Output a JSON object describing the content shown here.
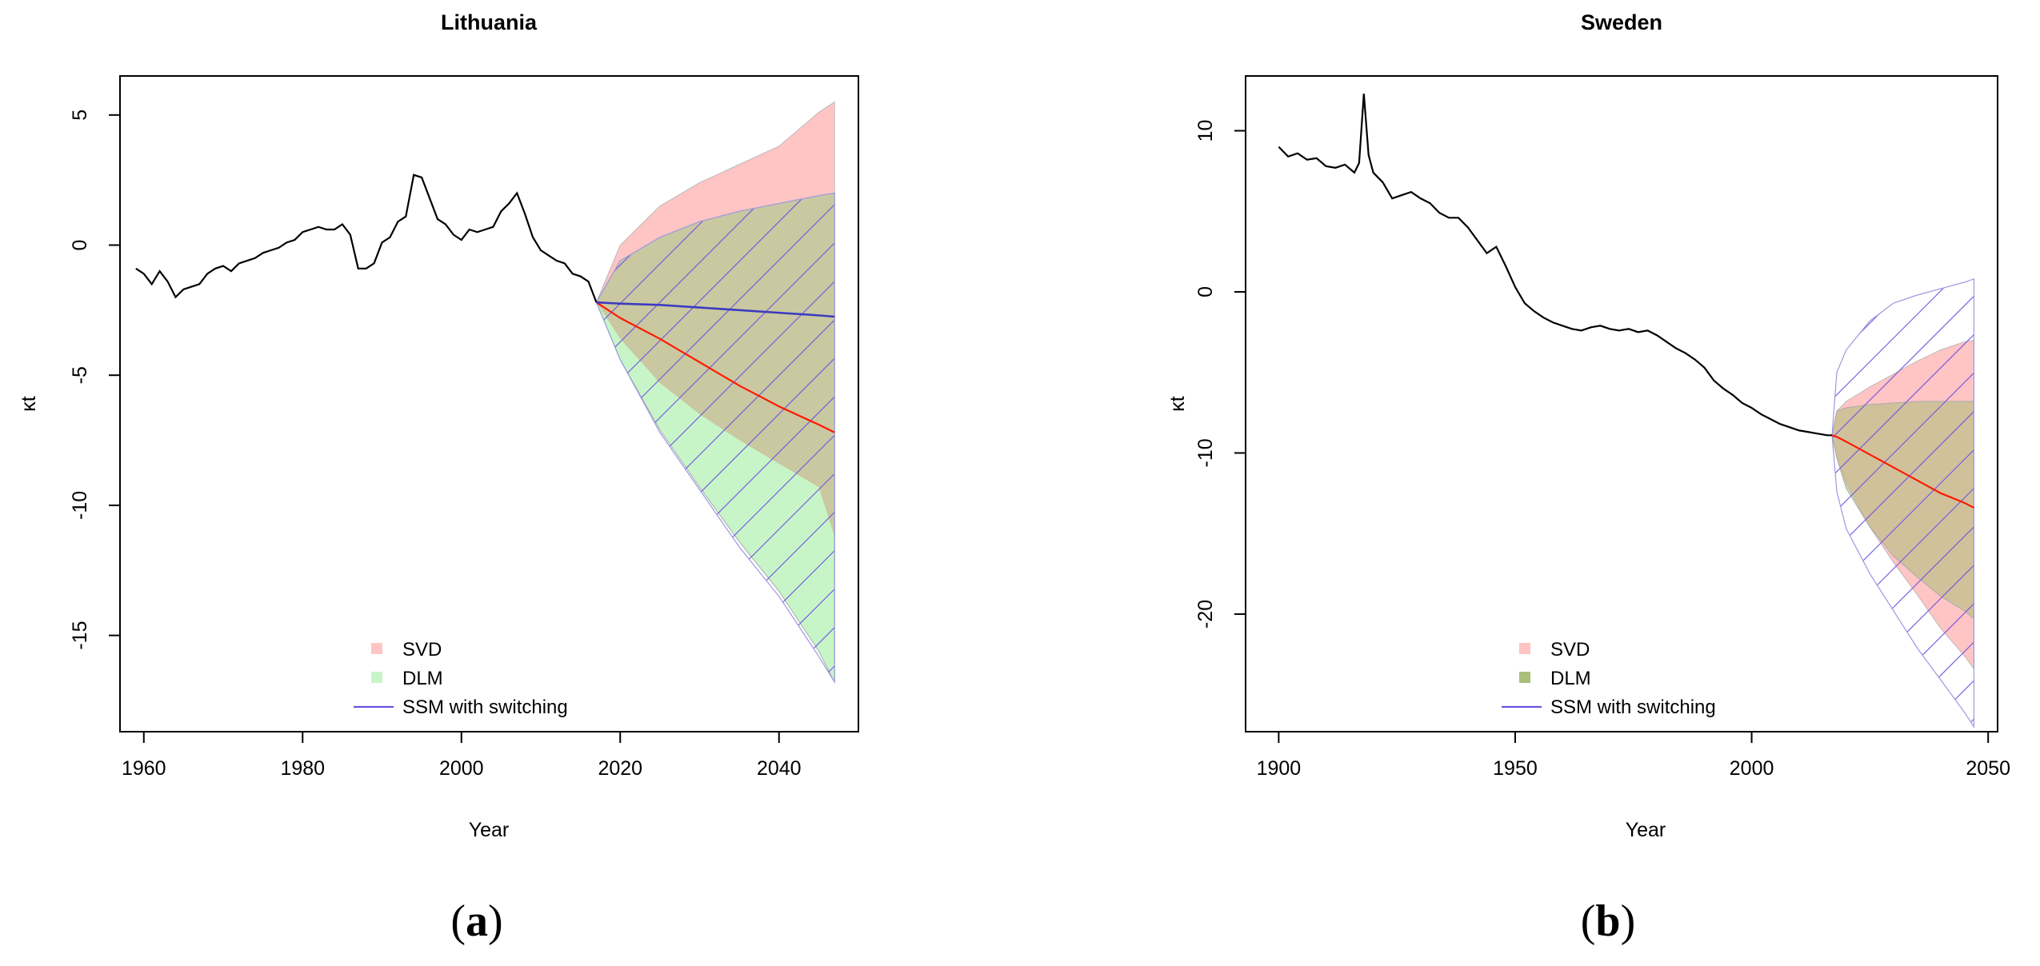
{
  "panel_captions": [
    {
      "open": "(",
      "letter": "a",
      "close": ")"
    },
    {
      "open": "(",
      "letter": "b",
      "close": ")"
    }
  ],
  "legend_labels": [
    "SVD",
    "DLM",
    "SSM with switching"
  ],
  "colors": {
    "observed": "#000000",
    "svd_fill": "#ffc4c4",
    "dlm_fill_a": "#c8f5c8",
    "dlm_fill_b": "#aabf7a",
    "hatch": "#6f52e0",
    "ssm_line": "#3b3bc0",
    "red_line": "#ff1a00",
    "overlap_fill": "#c9c8a0"
  },
  "chart_data": [
    {
      "type": "line",
      "title": "Lithuania",
      "xlabel": "Year",
      "ylabel": "κt",
      "xlim": [
        1957,
        2050
      ],
      "ylim": [
        -18.7,
        6.5
      ],
      "xticks": [
        1960,
        1980,
        2000,
        2020,
        2040
      ],
      "yticks": [
        5,
        0,
        -5,
        -10,
        -15
      ],
      "legend_position": "bottom-center",
      "grid": false,
      "observed": {
        "x": [
          1959,
          1960,
          1961,
          1962,
          1963,
          1964,
          1965,
          1966,
          1967,
          1968,
          1969,
          1970,
          1971,
          1972,
          1973,
          1974,
          1975,
          1976,
          1977,
          1978,
          1979,
          1980,
          1981,
          1982,
          1983,
          1984,
          1985,
          1986,
          1987,
          1988,
          1989,
          1990,
          1991,
          1992,
          1993,
          1994,
          1995,
          1996,
          1997,
          1998,
          1999,
          2000,
          2001,
          2002,
          2003,
          2004,
          2005,
          2006,
          2007,
          2008,
          2009,
          2010,
          2011,
          2012,
          2013,
          2014,
          2015,
          2016,
          2017
        ],
        "y": [
          -0.9,
          -1.1,
          -1.5,
          -1.0,
          -1.4,
          -2.0,
          -1.7,
          -1.6,
          -1.5,
          -1.1,
          -0.9,
          -0.8,
          -1.0,
          -0.7,
          -0.6,
          -0.5,
          -0.3,
          -0.2,
          -0.1,
          0.1,
          0.2,
          0.5,
          0.6,
          0.7,
          0.6,
          0.6,
          0.8,
          0.4,
          -0.9,
          -0.9,
          -0.7,
          0.1,
          0.3,
          0.9,
          1.1,
          2.7,
          2.6,
          1.8,
          1.0,
          0.8,
          0.4,
          0.2,
          0.6,
          0.5,
          0.6,
          0.7,
          1.3,
          1.6,
          2.0,
          1.2,
          0.3,
          -0.2,
          -0.4,
          -0.6,
          -0.7,
          -1.1,
          -1.2,
          -1.4,
          -2.2
        ]
      },
      "forecast": {
        "x": [
          2017,
          2020,
          2025,
          2030,
          2035,
          2040,
          2045,
          2047
        ],
        "svd_upper": [
          -2.2,
          0.0,
          1.5,
          2.4,
          3.1,
          3.8,
          5.1,
          5.5
        ],
        "svd_lower": [
          -2.2,
          -3.6,
          -5.3,
          -6.5,
          -7.5,
          -8.4,
          -9.3,
          -11.2
        ],
        "dlm_upper": [
          -2.2,
          -0.6,
          0.3,
          0.9,
          1.3,
          1.6,
          1.9,
          2.0
        ],
        "dlm_lower": [
          -2.2,
          -4.4,
          -7.1,
          -9.3,
          -11.4,
          -13.3,
          -15.6,
          -16.8
        ],
        "ssm_upper": [
          -2.2,
          -0.6,
          0.3,
          0.9,
          1.3,
          1.6,
          1.9,
          2.0
        ],
        "ssm_lower": [
          -2.2,
          -4.4,
          -7.2,
          -9.4,
          -11.6,
          -13.5,
          -15.8,
          -16.8
        ],
        "ssm_mean": [
          -2.2,
          -2.25,
          -2.3,
          -2.4,
          -2.5,
          -2.6,
          -2.7,
          -2.75
        ],
        "red_mean": [
          -2.2,
          -2.8,
          -3.6,
          -4.5,
          -5.4,
          -6.2,
          -6.9,
          -7.2
        ]
      }
    },
    {
      "type": "line",
      "title": "Sweden",
      "xlabel": "Year",
      "ylabel": "κt",
      "xlim": [
        1893,
        2052
      ],
      "ylim": [
        -27.3,
        13.4
      ],
      "xticks": [
        1900,
        1950,
        2000,
        2050
      ],
      "yticks": [
        10,
        0,
        -10,
        -20
      ],
      "legend_position": "bottom-center",
      "grid": false,
      "observed": {
        "x": [
          1900,
          1902,
          1904,
          1906,
          1908,
          1910,
          1912,
          1914,
          1916,
          1917,
          1918,
          1919,
          1920,
          1922,
          1924,
          1926,
          1928,
          1930,
          1932,
          1934,
          1936,
          1938,
          1940,
          1942,
          1944,
          1946,
          1948,
          1950,
          1952,
          1954,
          1956,
          1958,
          1960,
          1962,
          1964,
          1966,
          1968,
          1970,
          1972,
          1974,
          1976,
          1978,
          1980,
          1982,
          1984,
          1986,
          1988,
          1990,
          1992,
          1994,
          1996,
          1998,
          2000,
          2002,
          2004,
          2006,
          2008,
          2010,
          2012,
          2014,
          2016,
          2017
        ],
        "y": [
          9.0,
          8.4,
          8.6,
          8.2,
          8.3,
          7.8,
          7.7,
          7.9,
          7.4,
          8.0,
          12.3,
          8.5,
          7.4,
          6.8,
          5.8,
          6.0,
          6.2,
          5.8,
          5.5,
          4.9,
          4.6,
          4.6,
          4.0,
          3.2,
          2.4,
          2.8,
          1.6,
          0.3,
          -0.7,
          -1.2,
          -1.6,
          -1.9,
          -2.1,
          -2.3,
          -2.4,
          -2.2,
          -2.1,
          -2.3,
          -2.4,
          -2.3,
          -2.5,
          -2.4,
          -2.7,
          -3.1,
          -3.5,
          -3.8,
          -4.2,
          -4.7,
          -5.5,
          -6.0,
          -6.4,
          -6.9,
          -7.2,
          -7.6,
          -7.9,
          -8.2,
          -8.4,
          -8.6,
          -8.7,
          -8.8,
          -8.9,
          -8.9
        ]
      },
      "forecast": {
        "x": [
          2017,
          2018,
          2020,
          2025,
          2030,
          2035,
          2040,
          2045,
          2047
        ],
        "svd_upper": [
          -8.9,
          -7.4,
          -6.8,
          -5.9,
          -5.1,
          -4.3,
          -3.6,
          -3.1,
          -3.0
        ],
        "svd_lower": [
          -8.9,
          -10.3,
          -11.9,
          -14.6,
          -16.8,
          -18.8,
          -20.9,
          -22.6,
          -23.4
        ],
        "dlm_upper": [
          -8.9,
          -7.4,
          -7.2,
          -7.0,
          -6.9,
          -6.8,
          -6.8,
          -6.8,
          -6.8
        ],
        "dlm_lower": [
          -8.9,
          -10.3,
          -12.2,
          -14.6,
          -16.4,
          -17.7,
          -18.9,
          -19.8,
          -20.3
        ],
        "ssm_upper": [
          -8.9,
          -5.0,
          -3.6,
          -1.8,
          -0.7,
          -0.2,
          0.2,
          0.6,
          0.8
        ],
        "ssm_lower": [
          -8.9,
          -12.4,
          -14.7,
          -17.5,
          -19.8,
          -22.1,
          -24.1,
          -26.1,
          -27.0
        ],
        "red_mean": [
          -8.9,
          -9.0,
          -9.3,
          -10.1,
          -10.9,
          -11.7,
          -12.5,
          -13.1,
          -13.4
        ]
      }
    }
  ]
}
